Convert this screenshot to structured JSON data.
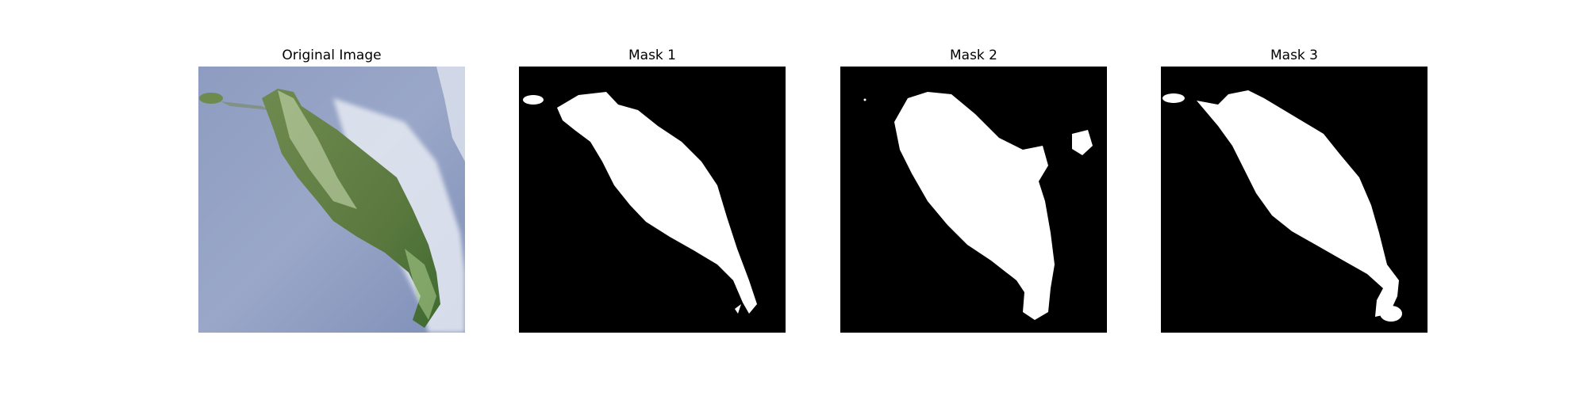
{
  "figure": {
    "panels": [
      {
        "title": "Original Image",
        "kind": "photo"
      },
      {
        "title": "Mask 1",
        "kind": "mask"
      },
      {
        "title": "Mask 2",
        "kind": "mask"
      },
      {
        "title": "Mask 3",
        "kind": "mask"
      }
    ],
    "colors": {
      "mask_background": "#000000",
      "mask_foreground": "#ffffff",
      "water": "#8d9cc0",
      "land": "#5e7a45",
      "surf": "#e8ecf4"
    }
  }
}
